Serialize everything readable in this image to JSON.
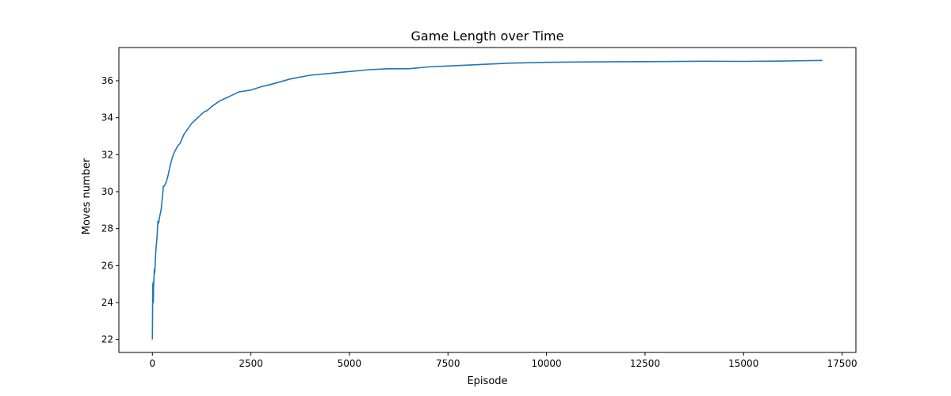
{
  "chart_data": {
    "type": "line",
    "title": "Game Length over Time",
    "xlabel": "Episode",
    "ylabel": "Moves number",
    "xlim": [
      -850,
      17850
    ],
    "ylim": [
      21.3,
      37.8
    ],
    "xticks": [
      0,
      2500,
      5000,
      7500,
      10000,
      12500,
      15000,
      17500
    ],
    "yticks": [
      22,
      24,
      26,
      28,
      30,
      32,
      34,
      36
    ],
    "grid": false,
    "legend": "none",
    "line_color": "#1f77b4",
    "series": [
      {
        "x": [
          0,
          5,
          10,
          15,
          20,
          25,
          30,
          40,
          50,
          60,
          70,
          80,
          90,
          100,
          120,
          140,
          160,
          180,
          200,
          220,
          250,
          280,
          300,
          350,
          400,
          450,
          500,
          550,
          600,
          650,
          700,
          800,
          900,
          1000,
          1100,
          1200,
          1300,
          1400,
          1500,
          1700,
          1900,
          2000,
          2200,
          2500,
          2800,
          3000,
          3500,
          4000,
          4500,
          5000,
          5500,
          6000,
          6500,
          7000,
          7500,
          8000,
          9000,
          10000,
          11000,
          12000,
          13000,
          14000,
          15000,
          16000,
          17000
        ],
        "y": [
          22.0,
          23.5,
          25.0,
          24.6,
          25.1,
          24.0,
          24.8,
          25.3,
          25.8,
          25.6,
          26.0,
          26.5,
          26.9,
          27.1,
          27.6,
          28.4,
          28.3,
          28.6,
          28.8,
          29.0,
          29.6,
          30.3,
          30.3,
          30.5,
          30.9,
          31.4,
          31.8,
          32.1,
          32.3,
          32.5,
          32.6,
          33.1,
          33.4,
          33.7,
          33.9,
          34.1,
          34.3,
          34.4,
          34.6,
          34.9,
          35.1,
          35.2,
          35.4,
          35.5,
          35.7,
          35.8,
          36.1,
          36.3,
          36.4,
          36.5,
          36.6,
          36.65,
          36.65,
          36.75,
          36.8,
          36.85,
          36.95,
          37.0,
          37.02,
          37.03,
          37.04,
          37.06,
          37.05,
          37.07,
          37.1
        ]
      }
    ]
  }
}
